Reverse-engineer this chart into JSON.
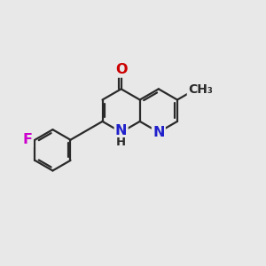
{
  "bg_color": "#e8e8e8",
  "bond_color": "#2a2a2a",
  "bond_width": 1.6,
  "dbo": 0.09,
  "N_color": "#2020cc",
  "O_color": "#cc0000",
  "F_color": "#cc00cc",
  "font_size_atom": 11.5,
  "font_size_H": 9.5,
  "font_size_methyl": 10,
  "xlim": [
    0,
    10
  ],
  "ylim": [
    0,
    10
  ]
}
